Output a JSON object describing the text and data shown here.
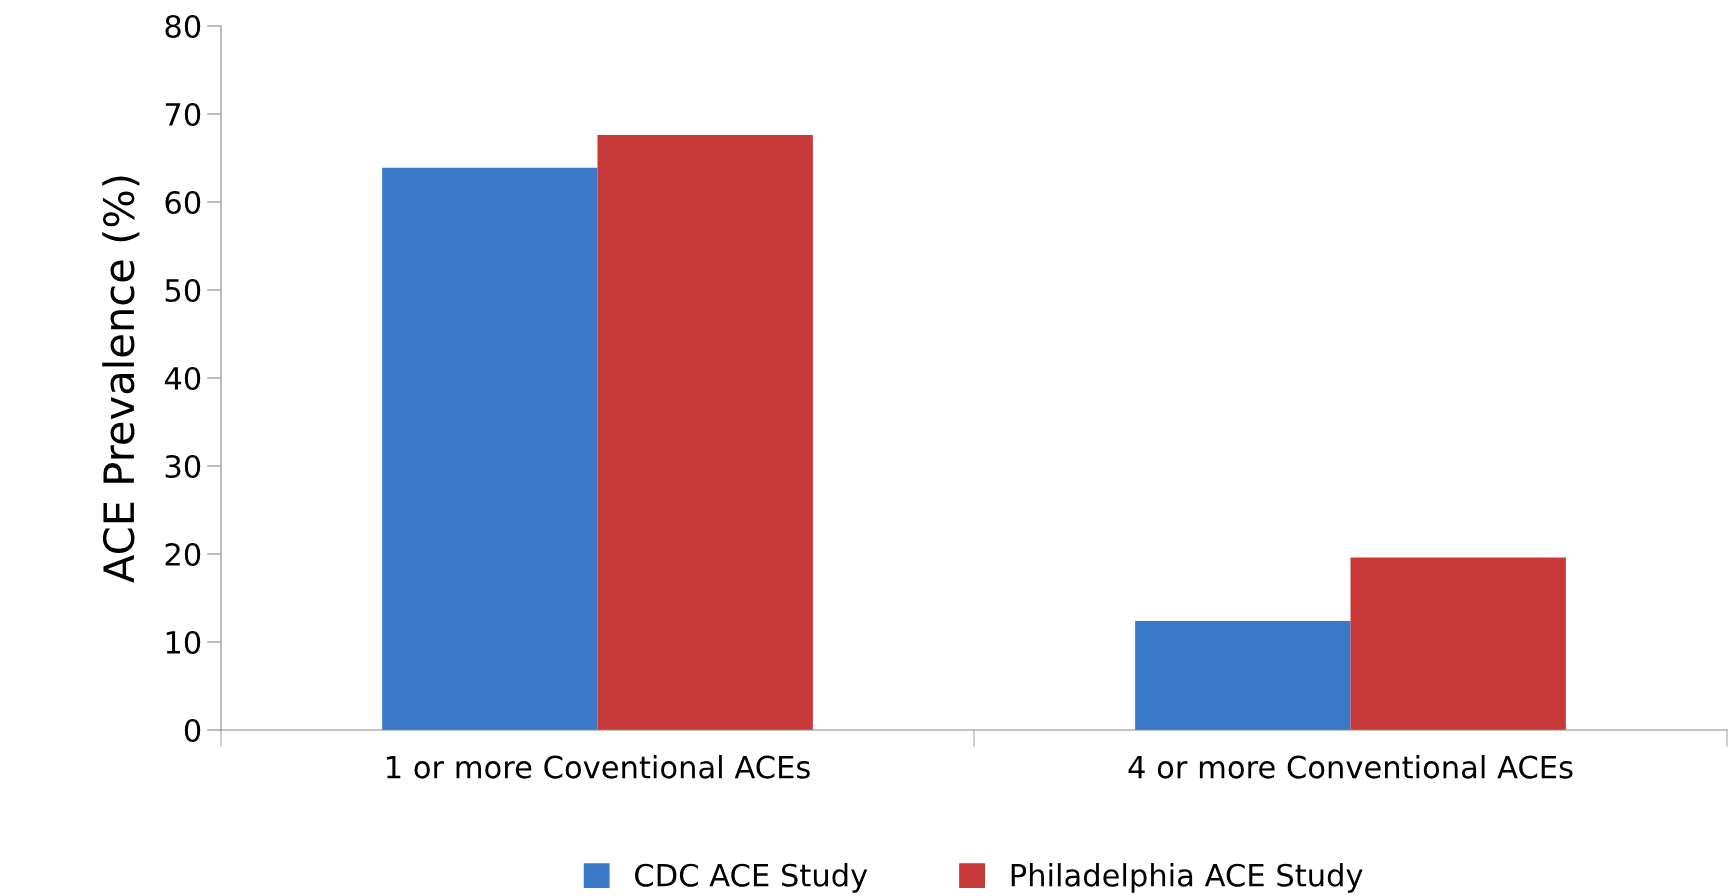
{
  "chart_data": {
    "type": "bar",
    "ylabel": "ACE Prevalence (%)",
    "categories": [
      "1 or more Coventional ACEs",
      "4 or more Conventional ACEs"
    ],
    "series": [
      {
        "name": "CDC ACE Study",
        "color": "#3a78c8",
        "values": [
          63.9,
          12.4
        ]
      },
      {
        "name": "Philadelphia ACE Study",
        "color": "#c83a3a",
        "values": [
          67.6,
          19.6
        ]
      }
    ],
    "ylim": [
      0,
      80
    ],
    "yticks": [
      0,
      10,
      20,
      30,
      40,
      50,
      60,
      70,
      80
    ],
    "grid": false,
    "legend": "bottom"
  }
}
